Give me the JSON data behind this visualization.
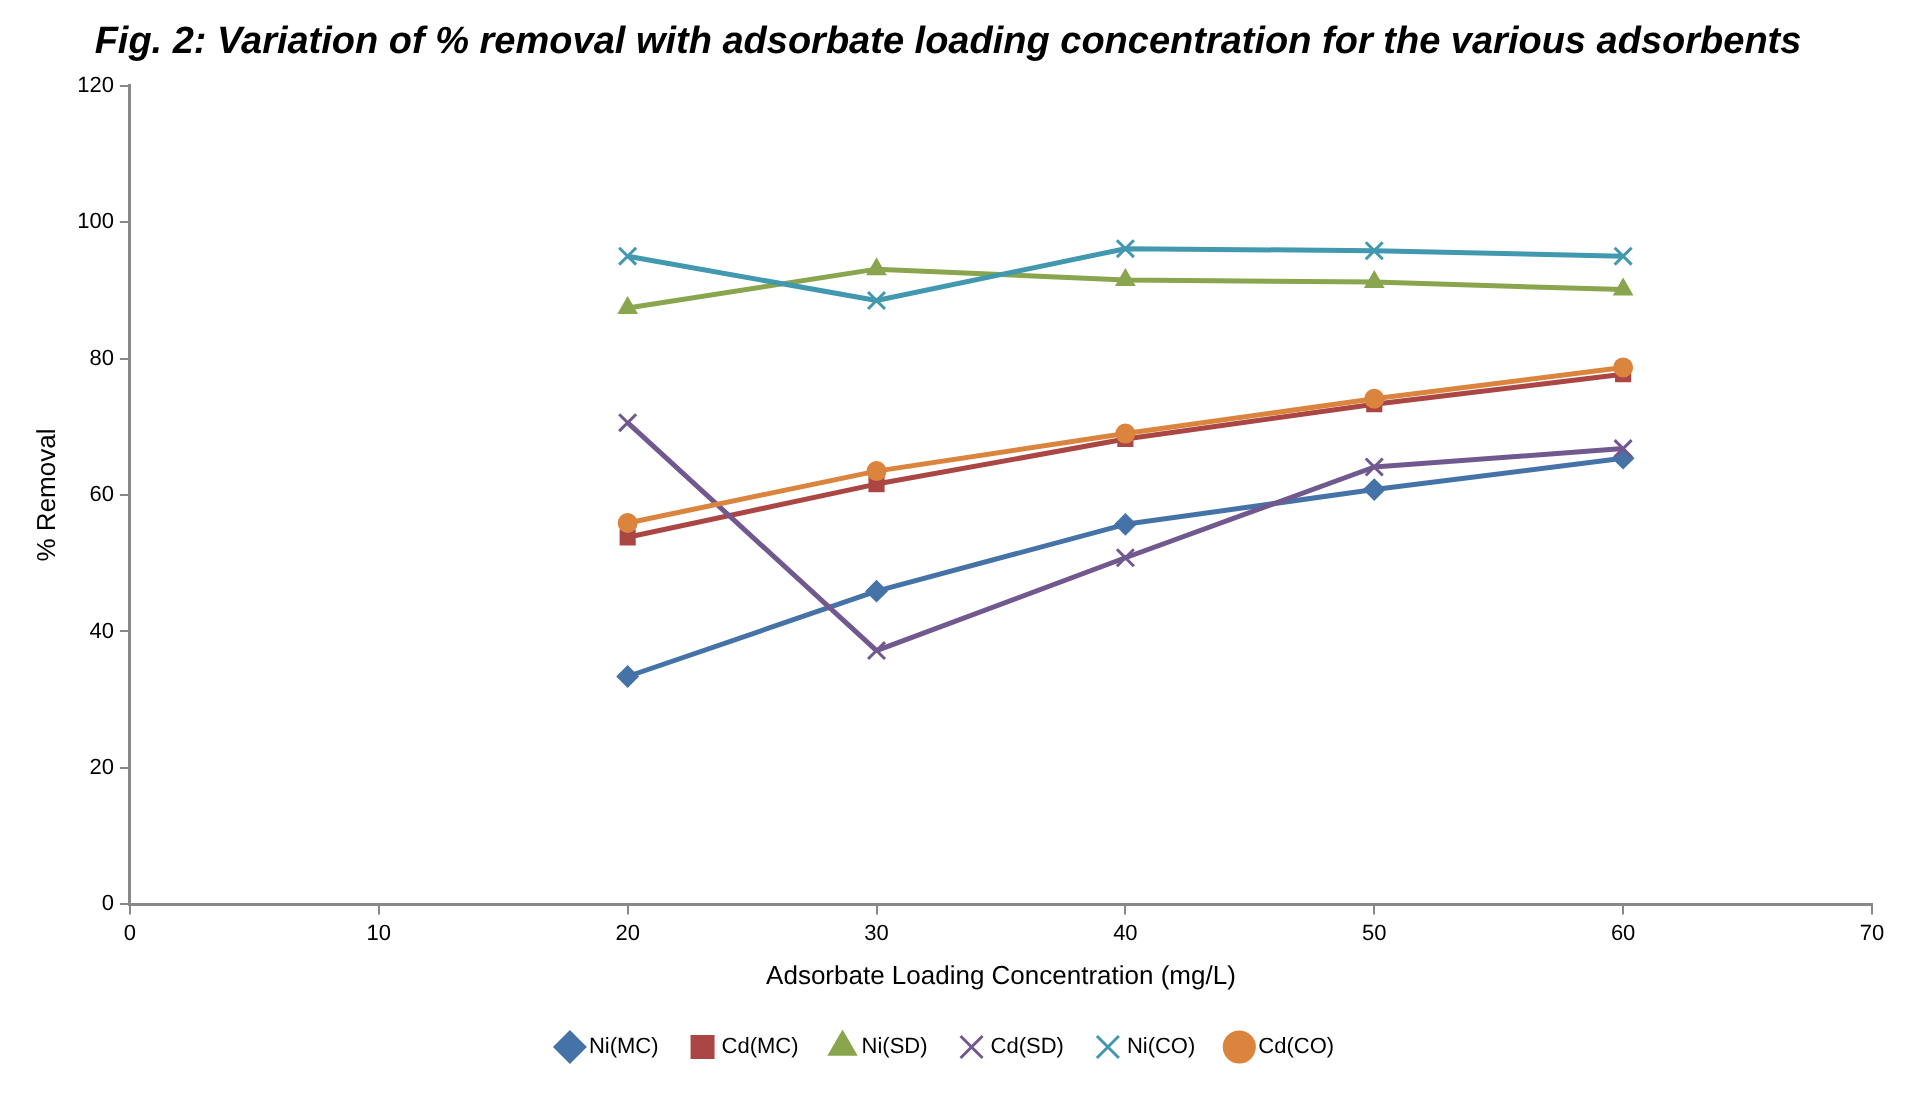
{
  "chart_data": {
    "type": "line",
    "title": "Fig. 2: Variation of % removal with adsorbate loading concentration for the various adsorbents",
    "xlabel": "Adsorbate Loading Concentration (mg/L)",
    "ylabel": "% Removal",
    "x": [
      20,
      30,
      40,
      50,
      60
    ],
    "xlim": [
      0,
      70
    ],
    "xticks": [
      0,
      10,
      20,
      30,
      40,
      50,
      60,
      70
    ],
    "ylim": [
      0,
      120
    ],
    "yticks": [
      0,
      20,
      40,
      60,
      80,
      100,
      120
    ],
    "grid": false,
    "legend": "bottom",
    "line_style": "solid",
    "series": [
      {
        "name": "Ni(MC)",
        "color": "#4572a7",
        "marker": "diamond",
        "values": [
          33.4,
          45.9,
          55.7,
          60.8,
          65.4
        ]
      },
      {
        "name": "Cd(MC)",
        "color": "#aa4643",
        "marker": "square",
        "values": [
          53.8,
          61.6,
          68.2,
          73.3,
          77.7
        ]
      },
      {
        "name": "Ni(SD)",
        "color": "#89a54e",
        "marker": "triangle",
        "values": [
          87.4,
          93.1,
          91.5,
          91.2,
          90.1
        ]
      },
      {
        "name": "Cd(SD)",
        "color": "#71588f",
        "marker": "cross",
        "values": [
          70.6,
          37.2,
          50.8,
          64.1,
          66.8
        ]
      },
      {
        "name": "Ni(CO)",
        "color": "#4198af",
        "marker": "cross",
        "values": [
          95,
          88.5,
          96.1,
          95.8,
          95
        ]
      },
      {
        "name": "Cd(CO)",
        "color": "#db843d",
        "marker": "circle",
        "values": [
          55.9,
          63.5,
          69,
          74.1,
          78.7
        ]
      }
    ]
  }
}
